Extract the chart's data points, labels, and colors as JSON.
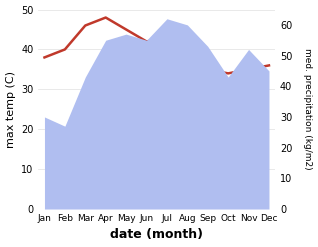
{
  "months": [
    "Jan",
    "Feb",
    "Mar",
    "Apr",
    "May",
    "Jun",
    "Jul",
    "Aug",
    "Sep",
    "Oct",
    "Nov",
    "Dec"
  ],
  "max_temp": [
    38,
    40,
    46,
    48,
    45,
    42,
    43,
    43,
    35,
    34,
    35,
    36
  ],
  "precipitation": [
    30,
    27,
    43,
    55,
    57,
    55,
    62,
    60,
    53,
    43,
    52,
    45
  ],
  "temp_ylim": [
    0,
    50
  ],
  "precip_ylim": [
    0,
    65
  ],
  "temp_color": "#c0392b",
  "precip_fill_color": "#b0bef0",
  "xlabel": "date (month)",
  "ylabel_left": "max temp (C)",
  "ylabel_right": "med. precipitation (kg/m2)",
  "bg_color": "#ffffff",
  "temp_linewidth": 1.8
}
